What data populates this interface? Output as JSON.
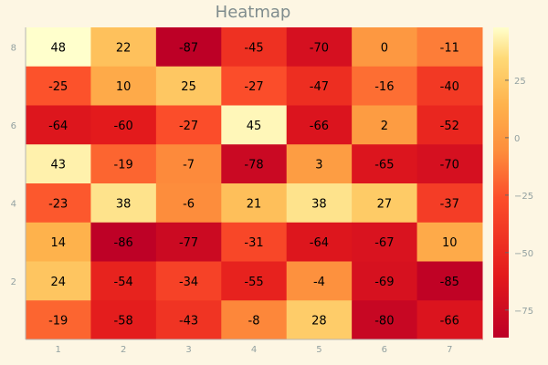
{
  "chart_data": {
    "type": "heatmap",
    "title": "Heatmap",
    "x_ticks": [
      "1",
      "2",
      "3",
      "4",
      "5",
      "6",
      "7"
    ],
    "y_ticks": [
      "2",
      "4",
      "6",
      "8"
    ],
    "xlim": [
      0.5,
      7.5
    ],
    "ylim": [
      0.5,
      8.5
    ],
    "colorbar_ticks": [
      "25",
      "0",
      "−25",
      "−50",
      "−75"
    ],
    "colorbar_tick_values": [
      25,
      0,
      -25,
      -50,
      -75
    ],
    "value_range": [
      -87,
      48
    ],
    "colormap": "YlOrRd reversed",
    "colors": {
      "low": "#bd0026",
      "mid_low": "#e31a1c",
      "mid": "#fd8d3c",
      "mid_high": "#fed976",
      "high": "#ffffcc",
      "background": "#fdf6e3"
    },
    "rows_top_to_bottom": [
      [
        48,
        22,
        -87,
        -45,
        -70,
        0,
        -11
      ],
      [
        -25,
        10,
        25,
        -27,
        -47,
        -16,
        -40
      ],
      [
        -64,
        -60,
        -27,
        45,
        -66,
        2,
        -52
      ],
      [
        43,
        -19,
        -7,
        -78,
        3,
        -65,
        -70
      ],
      [
        -23,
        38,
        -6,
        21,
        38,
        27,
        -37
      ],
      [
        14,
        -86,
        -77,
        -31,
        -64,
        -67,
        10
      ],
      [
        24,
        -54,
        -34,
        -55,
        -4,
        -69,
        -85
      ],
      [
        -19,
        -58,
        -43,
        -8,
        28,
        -80,
        -66
      ]
    ],
    "grid": false,
    "legend": "colorbar-right"
  }
}
